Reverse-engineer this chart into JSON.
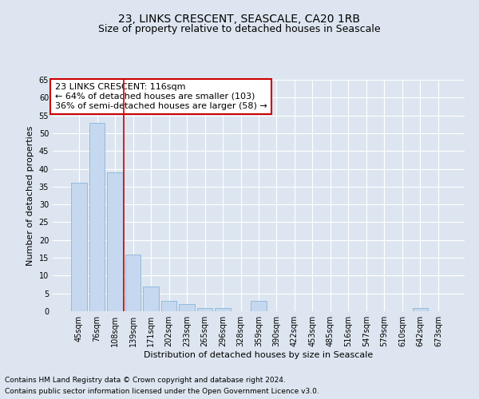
{
  "title": "23, LINKS CRESCENT, SEASCALE, CA20 1RB",
  "subtitle": "Size of property relative to detached houses in Seascale",
  "xlabel": "Distribution of detached houses by size in Seascale",
  "ylabel": "Number of detached properties",
  "footer_line1": "Contains HM Land Registry data © Crown copyright and database right 2024.",
  "footer_line2": "Contains public sector information licensed under the Open Government Licence v3.0.",
  "bar_labels": [
    "45sqm",
    "76sqm",
    "108sqm",
    "139sqm",
    "171sqm",
    "202sqm",
    "233sqm",
    "265sqm",
    "296sqm",
    "328sqm",
    "359sqm",
    "390sqm",
    "422sqm",
    "453sqm",
    "485sqm",
    "516sqm",
    "547sqm",
    "579sqm",
    "610sqm",
    "642sqm",
    "673sqm"
  ],
  "bar_values": [
    36,
    53,
    39,
    16,
    7,
    3,
    2,
    1,
    1,
    0,
    3,
    0,
    0,
    0,
    0,
    0,
    0,
    0,
    0,
    1,
    0
  ],
  "bar_color": "#c5d8ef",
  "bar_edge_color": "#8ab4d8",
  "background_color": "#dde6f0",
  "grid_color": "#ffffff",
  "vline_color": "#cc0000",
  "vline_x_index": 2.5,
  "annotation_text": "23 LINKS CRESCENT: 116sqm\n← 64% of detached houses are smaller (103)\n36% of semi-detached houses are larger (58) →",
  "annotation_box_facecolor": "#ffffff",
  "annotation_box_edgecolor": "#cc0000",
  "ylim": [
    0,
    65
  ],
  "yticks": [
    0,
    5,
    10,
    15,
    20,
    25,
    30,
    35,
    40,
    45,
    50,
    55,
    60,
    65
  ],
  "title_fontsize": 10,
  "subtitle_fontsize": 9,
  "axis_label_fontsize": 8,
  "tick_fontsize": 7,
  "annotation_fontsize": 8,
  "footer_fontsize": 6.5
}
